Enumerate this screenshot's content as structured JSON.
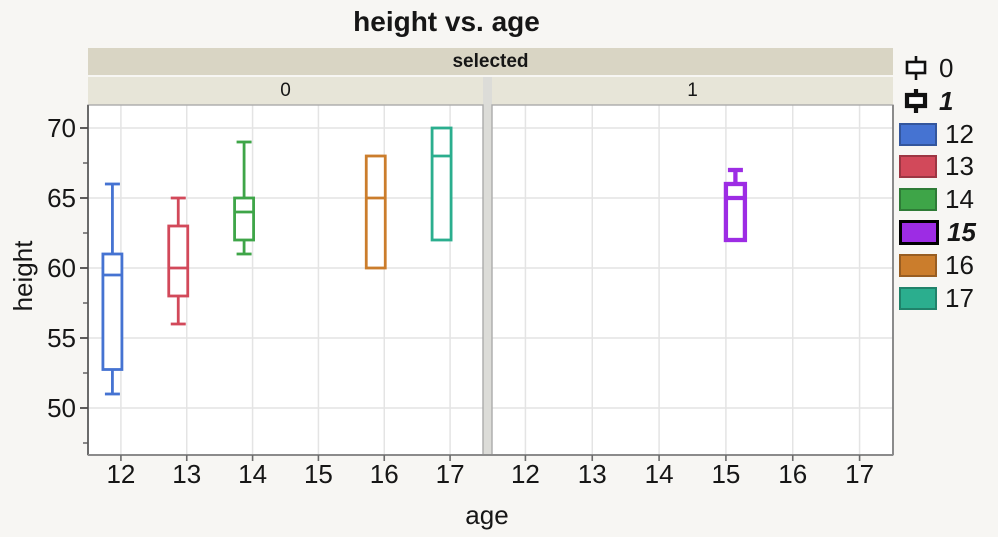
{
  "title": "height vs. age",
  "facet": {
    "strip_label": "selected",
    "panel_labels": [
      "0",
      "1"
    ]
  },
  "axes": {
    "x_label": "age",
    "y_label": "height"
  },
  "legend": {
    "selected_items": [
      {
        "label": "0",
        "emphasized": false
      },
      {
        "label": "1",
        "emphasized": true
      }
    ],
    "age_items": [
      {
        "label": "12",
        "color": "#4573D2",
        "emphasized": false
      },
      {
        "label": "13",
        "color": "#D2495A",
        "emphasized": false
      },
      {
        "label": "14",
        "color": "#3EA548",
        "emphasized": false
      },
      {
        "label": "15",
        "color": "#9D2CE4",
        "emphasized": true
      },
      {
        "label": "16",
        "color": "#CB7D2C",
        "emphasized": false
      },
      {
        "label": "17",
        "color": "#2BAE8E",
        "emphasized": false
      }
    ]
  },
  "chart_data": {
    "type": "boxplot",
    "title": "height vs. age",
    "xlabel": "age",
    "ylabel": "height",
    "facet_by": "selected",
    "legend_position": "right",
    "grid": true,
    "x_categories": [
      "12",
      "13",
      "14",
      "15",
      "16",
      "17"
    ],
    "y_ticks": [
      50,
      55,
      60,
      65,
      70
    ],
    "y_minor_ticks": [
      47.5,
      52.5,
      57.5,
      62.5,
      67.5
    ],
    "ylim": [
      46.6,
      71.6
    ],
    "panels": [
      {
        "facet_value": "0",
        "boxes": [
          {
            "age": "12",
            "min": 51,
            "q1": 52.75,
            "median": 59.5,
            "q3": 61,
            "max": 66,
            "emphasized": false
          },
          {
            "age": "13",
            "min": 56,
            "q1": 58,
            "median": 60,
            "q3": 63,
            "max": 65,
            "emphasized": false
          },
          {
            "age": "14",
            "min": 61,
            "q1": 62,
            "median": 64,
            "q3": 65,
            "max": 69,
            "emphasized": false
          },
          {
            "age": "16",
            "min": 60,
            "q1": 60,
            "median": 65,
            "q3": 68,
            "max": 68,
            "emphasized": false
          },
          {
            "age": "17",
            "min": 62,
            "q1": 62,
            "median": 68,
            "q3": 70,
            "max": 70,
            "emphasized": false
          }
        ]
      },
      {
        "facet_value": "1",
        "boxes": [
          {
            "age": "15",
            "min": 62,
            "q1": 62,
            "median": 65,
            "q3": 66,
            "max": 67,
            "emphasized": true
          }
        ]
      }
    ]
  },
  "colors": {
    "page_bg": "#F7F6F3",
    "panel_bg": "#FFFFFF",
    "strip_header_bg": "#D9D5C4",
    "strip_sub_bg": "#E7E5D8",
    "facet_divider": "#DCDCD8",
    "grid": "#E4E4E4",
    "panel_frame": "#ABABAB",
    "axis_line": "#6B6B6B",
    "tick": "#4A4A4A",
    "text": "#161616"
  }
}
